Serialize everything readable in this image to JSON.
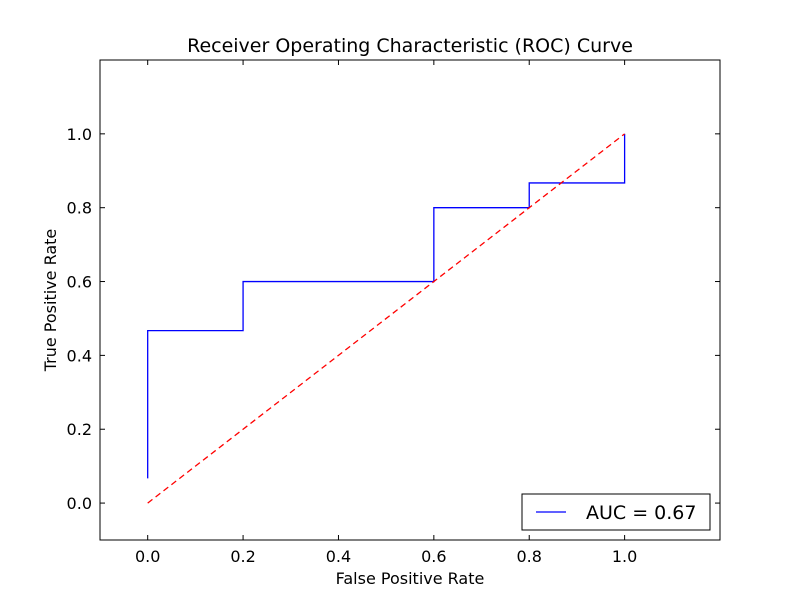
{
  "chart_data": {
    "type": "line",
    "title": "Receiver Operating Characteristic (ROC) Curve",
    "xlabel": "False Positive Rate",
    "ylabel": "True Positive Rate",
    "xlim": [
      -0.1,
      1.2
    ],
    "ylim": [
      -0.1,
      1.2
    ],
    "xticks": [
      0.0,
      0.2,
      0.4,
      0.6,
      0.8,
      1.0
    ],
    "yticks": [
      0.0,
      0.2,
      0.4,
      0.6,
      0.8,
      1.0
    ],
    "xtick_labels": [
      "0.0",
      "0.2",
      "0.4",
      "0.6",
      "0.8",
      "1.0"
    ],
    "ytick_labels": [
      "0.0",
      "0.2",
      "0.4",
      "0.6",
      "0.8",
      "1.0"
    ],
    "grid": false,
    "legend_position": "lower-right",
    "series": [
      {
        "name": "AUC = 0.67",
        "color": "#0000ff",
        "style": "solid",
        "x": [
          0.0,
          0.0,
          0.2,
          0.2,
          0.6,
          0.6,
          0.8,
          0.8,
          1.0,
          1.0
        ],
        "y": [
          0.067,
          0.467,
          0.467,
          0.6,
          0.6,
          0.8,
          0.8,
          0.867,
          0.867,
          1.0
        ]
      },
      {
        "color": "#ff0000",
        "style": "dashed",
        "x": [
          0.0,
          1.0
        ],
        "y": [
          0.0,
          1.0
        ]
      }
    ]
  }
}
